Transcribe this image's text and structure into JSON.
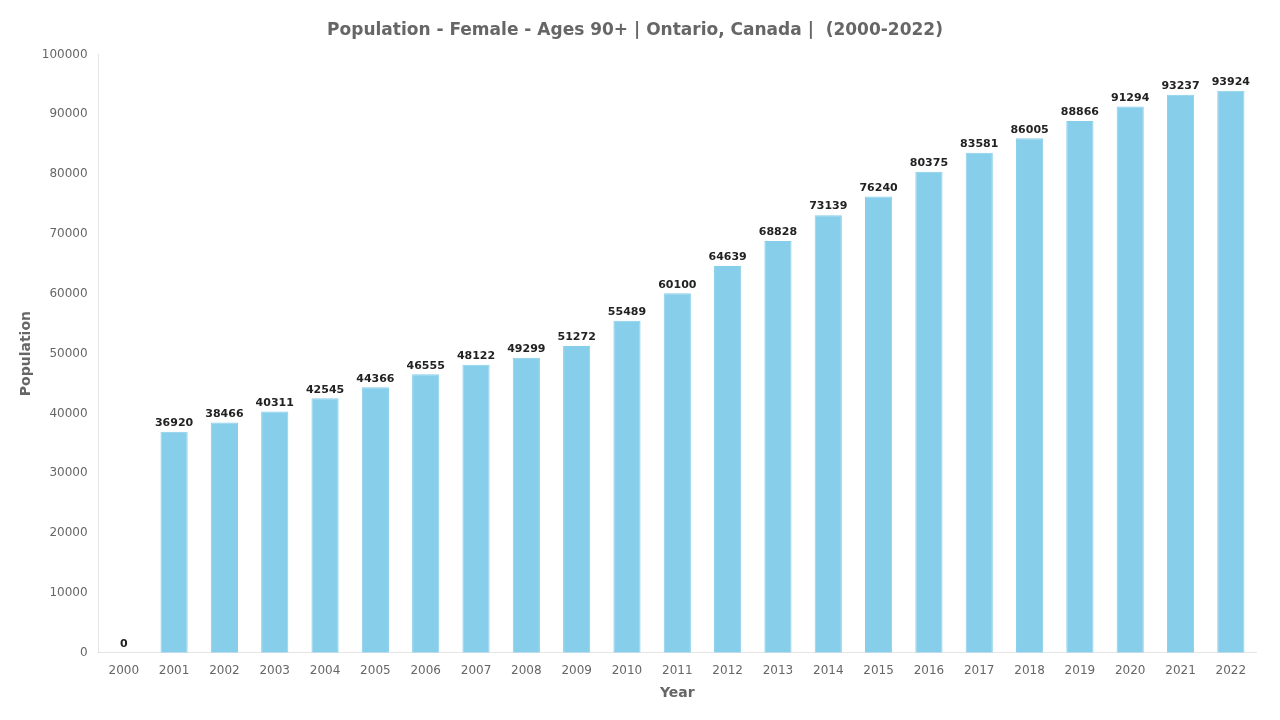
{
  "chart_data": {
    "type": "bar",
    "title": "Population - Female - Ages 90+ | Ontario, Canada |  (2000-2022)",
    "xlabel": "Year",
    "ylabel": "Population",
    "categories": [
      "2000",
      "2001",
      "2002",
      "2003",
      "2004",
      "2005",
      "2006",
      "2007",
      "2008",
      "2009",
      "2010",
      "2011",
      "2012",
      "2013",
      "2014",
      "2015",
      "2016",
      "2017",
      "2018",
      "2019",
      "2020",
      "2021",
      "2022"
    ],
    "values": [
      0,
      36920,
      38466,
      40311,
      42545,
      44366,
      46555,
      48122,
      49299,
      51272,
      55489,
      60100,
      64639,
      68828,
      73139,
      76240,
      80375,
      83581,
      86005,
      88866,
      91294,
      93237,
      93924
    ],
    "color": "#87CEEB",
    "ylim": [
      0,
      100000
    ],
    "yticks": [
      0,
      10000,
      20000,
      30000,
      40000,
      50000,
      60000,
      70000,
      80000,
      90000,
      100000
    ],
    "grid": false,
    "data_labels": true
  }
}
